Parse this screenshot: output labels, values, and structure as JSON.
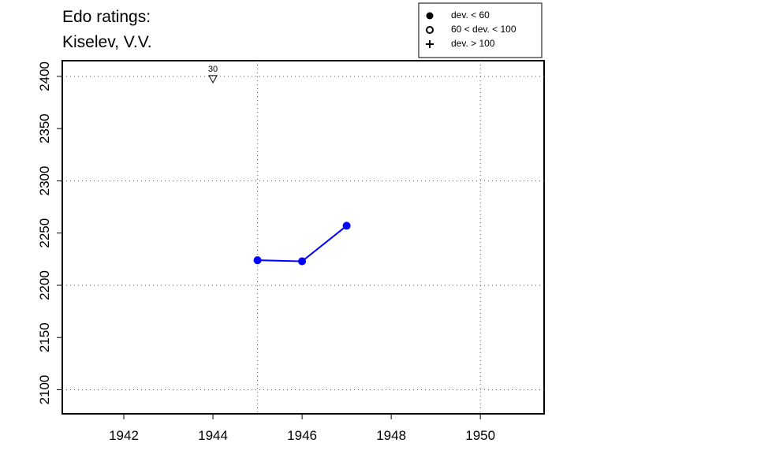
{
  "chart_data": {
    "type": "line",
    "title": [
      "Edo ratings:",
      "Kiselev, V.V."
    ],
    "series": [
      {
        "color": "#0000ff",
        "x": [
          1945,
          1946,
          1947
        ],
        "values": [
          2224,
          2223,
          2257
        ]
      }
    ],
    "xlim": [
      1940.62,
      1951.43
    ],
    "xticks": [
      1942,
      1944,
      1946,
      1948,
      1950
    ],
    "ylim": [
      2077,
      2415
    ],
    "yticks": [
      2100,
      2150,
      2200,
      2250,
      2300,
      2350,
      2400
    ],
    "xgrid": [
      1945,
      1950
    ],
    "ygrid": [
      2100,
      2200,
      2300,
      2400
    ],
    "annotations": [
      {
        "x": 1944,
        "y": 2397,
        "label": "30"
      }
    ],
    "legend": [
      {
        "label": "dev. < 60",
        "marker": "filled-circle"
      },
      {
        "label": "60 < dev. < 100",
        "marker": "open-circle"
      },
      {
        "label": "dev. > 100",
        "marker": "plus"
      }
    ]
  }
}
